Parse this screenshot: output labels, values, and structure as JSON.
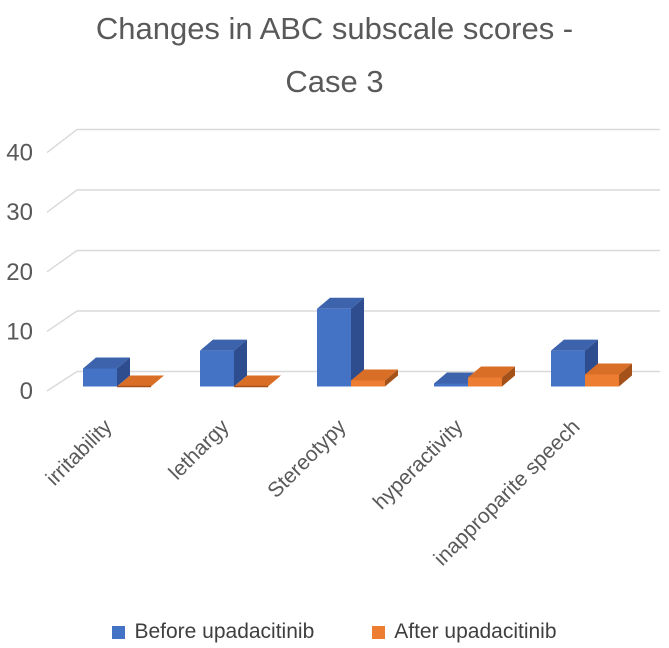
{
  "figure": {
    "title": "Changes in ABC subscale scores - Case 3",
    "title_lines": [
      "Changes in ABC subscale scores -",
      "Case 3"
    ]
  },
  "chart_data": {
    "type": "bar",
    "style": "3d-clustered-column",
    "title": "Changes in ABC subscale scores - Case 3",
    "categories": [
      "irritability",
      "lethargy",
      "Stereotypy",
      "hyperactivity",
      "inapproparite speech"
    ],
    "series": [
      {
        "name": "Before upadacitinib",
        "color": "#4472C4",
        "values": [
          3,
          6,
          13,
          0.5,
          6
        ]
      },
      {
        "name": "After upadacitinib",
        "color": "#ED7D31",
        "values": [
          0,
          0,
          1,
          1.5,
          2
        ]
      }
    ],
    "yticks": [
      0,
      10,
      20,
      30,
      40
    ],
    "ylim": [
      0,
      40
    ],
    "xlabel": "",
    "ylabel": "",
    "grid": true,
    "legend_position": "bottom"
  },
  "legend": {
    "items": [
      {
        "label": "Before upadacitinib",
        "swatch": "#4472C4"
      },
      {
        "label": "After upadacitinib",
        "swatch": "#ED7D31"
      }
    ]
  },
  "colors": {
    "title_text": "#595959",
    "axis_text": "#595959",
    "legend_text": "#3F3F3F",
    "gridline": "#D9D9D9",
    "background": "#FFFFFF",
    "blue_front": "#4472C4",
    "blue_top": "#3C63AC",
    "blue_side": "#2E4D8F",
    "orange_front": "#ED7D31",
    "orange_top": "#D96E27",
    "orange_side": "#A5521A"
  }
}
